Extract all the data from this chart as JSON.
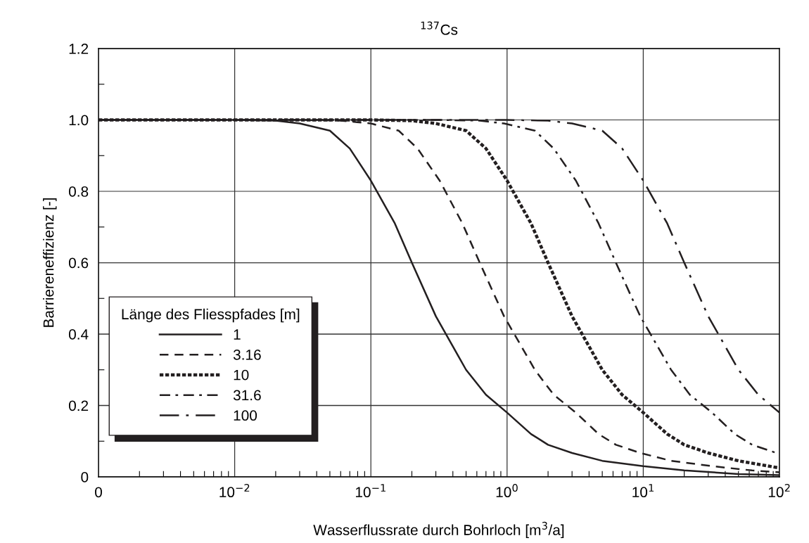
{
  "chart_data": {
    "type": "line",
    "title": "$^{137}$Cs",
    "xlabel": "Wasserflussrate durch Bohrloch [m$^{3}$/a]",
    "ylabel": "Barriereneffizienz [-]",
    "legend_title": "Länge des Fliesspfades [m]",
    "legend": "bottom left",
    "log": "x",
    "grid": true,
    "xlim": [
      0.001,
      100
    ],
    "xticks": [
      {
        "value": 0.001,
        "label": "0"
      },
      {
        "value": 0.01,
        "label": "10$^{−2}$"
      },
      {
        "value": 0.1,
        "label": "10$^{−1}$"
      },
      {
        "value": 1,
        "label": "10$^{0}$"
      },
      {
        "value": 10,
        "label": "10$^{1}$"
      },
      {
        "value": 100,
        "label": "10$^{2}$"
      }
    ],
    "ylim": [
      0,
      1.2
    ],
    "yticks": [
      0,
      {
        "value": 0.2,
        "label": "0.2"
      },
      {
        "value": 0.4,
        "label": "0.4"
      },
      {
        "value": 0.6,
        "label": "0.6"
      },
      {
        "value": 0.8,
        "label": "0.8"
      },
      {
        "value": 1.0,
        "label": "1.0"
      },
      {
        "value": 1.2,
        "label": "1.2"
      }
    ],
    "series": [
      {
        "name": "1",
        "color": "#231f20",
        "line_style": "solid",
        "x": [
          0.001,
          0.01,
          0.02,
          0.03,
          0.05,
          0.07,
          0.1,
          0.15,
          0.2,
          0.3,
          0.5,
          0.7,
          1,
          1.5,
          2,
          3,
          5,
          10,
          20,
          50,
          100
        ],
        "values": [
          1,
          1,
          0.998,
          0.99,
          0.97,
          0.92,
          0.83,
          0.71,
          0.6,
          0.45,
          0.3,
          0.23,
          0.18,
          0.12,
          0.09,
          0.067,
          0.045,
          0.03,
          0.018,
          0.008,
          0.005
        ]
      },
      {
        "name": "3.16",
        "color": "#231f20",
        "line_style": "dashed",
        "x": [
          0.001,
          0.03,
          0.06,
          0.1,
          0.16,
          0.22,
          0.32,
          0.47,
          0.63,
          0.95,
          1.6,
          2.2,
          3.2,
          4.7,
          6.3,
          9.5,
          16,
          32,
          63,
          100
        ],
        "values": [
          1,
          1,
          0.998,
          0.99,
          0.97,
          0.92,
          0.83,
          0.71,
          0.6,
          0.45,
          0.3,
          0.23,
          0.18,
          0.12,
          0.09,
          0.067,
          0.045,
          0.03,
          0.018,
          0.013
        ]
      },
      {
        "name": "10",
        "color": "#231f20",
        "line_style": "dotted",
        "x": [
          0.001,
          0.1,
          0.2,
          0.3,
          0.5,
          0.7,
          1,
          1.5,
          2,
          3,
          5,
          7,
          10,
          15,
          20,
          30,
          50,
          100
        ],
        "values": [
          1,
          1,
          0.998,
          0.99,
          0.97,
          0.92,
          0.83,
          0.71,
          0.6,
          0.45,
          0.3,
          0.23,
          0.18,
          0.12,
          0.09,
          0.067,
          0.045,
          0.025
        ]
      },
      {
        "name": "31.6",
        "color": "#231f20",
        "line_style": "dashdot",
        "x": [
          0.001,
          0.32,
          0.63,
          0.95,
          1.6,
          2.2,
          3.2,
          4.7,
          6.3,
          9.5,
          16,
          22,
          32,
          47,
          63,
          95,
          100
        ],
        "values": [
          1,
          1,
          0.998,
          0.99,
          0.97,
          0.92,
          0.83,
          0.71,
          0.6,
          0.45,
          0.3,
          0.23,
          0.18,
          0.12,
          0.09,
          0.067,
          0.063
        ]
      },
      {
        "name": "100",
        "color": "#231f20",
        "line_style": "longdash",
        "x": [
          0.001,
          1,
          2,
          3,
          5,
          7,
          10,
          15,
          20,
          30,
          50,
          70,
          100
        ],
        "values": [
          1,
          1,
          0.998,
          0.99,
          0.97,
          0.92,
          0.83,
          0.71,
          0.6,
          0.45,
          0.3,
          0.23,
          0.18
        ]
      }
    ]
  }
}
